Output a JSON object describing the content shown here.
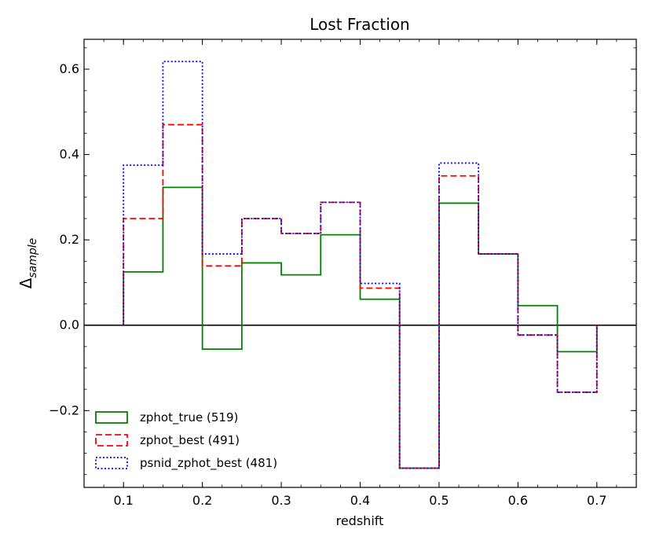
{
  "chart_data": {
    "type": "line",
    "title": "Lost Fraction",
    "xlabel": "redshift",
    "ylabel_main": "Δ",
    "ylabel_sub": "sample",
    "xlim": [
      0.05,
      0.75
    ],
    "ylim": [
      -0.38,
      0.67
    ],
    "x_ticks": [
      0.1,
      0.2,
      0.3,
      0.4,
      0.5,
      0.6,
      0.7
    ],
    "x_tick_labels": [
      "0.1",
      "0.2",
      "0.3",
      "0.4",
      "0.5",
      "0.6",
      "0.7"
    ],
    "y_ticks": [
      -0.2,
      0.0,
      0.2,
      0.4,
      0.6
    ],
    "y_tick_labels": [
      "−0.2",
      "0.0",
      "0.2",
      "0.4",
      "0.6"
    ],
    "bin_edges": [
      0.1,
      0.15,
      0.2,
      0.25,
      0.3,
      0.35,
      0.4,
      0.45,
      0.5,
      0.55,
      0.6,
      0.65,
      0.7
    ],
    "reference_line_y": 0,
    "legend_position": "lower-left",
    "series": [
      {
        "name": "zphot_true (519)",
        "color": "#008000",
        "style": "solid",
        "values": [
          0.125,
          0.323,
          -0.056,
          0.146,
          0.118,
          0.212,
          0.061,
          -0.335,
          0.286,
          0.167,
          0.046,
          -0.062
        ]
      },
      {
        "name": "zphot_best (491)",
        "color": "#ff0000",
        "style": "dashed",
        "values": [
          0.25,
          0.47,
          0.139,
          0.25,
          0.215,
          0.288,
          0.087,
          -0.335,
          0.35,
          0.167,
          -0.023,
          -0.157
        ]
      },
      {
        "name": "psnid_zphot_best (481)",
        "color": "#0000ff",
        "style": "dotted",
        "values": [
          0.375,
          0.618,
          0.167,
          0.25,
          0.215,
          0.288,
          0.098,
          -0.335,
          0.38,
          0.167,
          -0.023,
          -0.157
        ]
      }
    ]
  }
}
